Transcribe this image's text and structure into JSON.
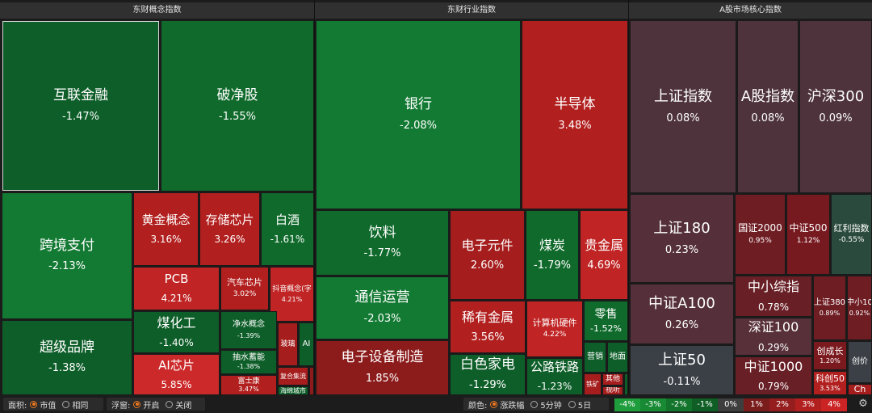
{
  "panels": [
    {
      "title": "东财概念指数"
    },
    {
      "title": "东财行业指数"
    },
    {
      "title": "A股市场核心指数"
    }
  ],
  "concept_cells": [
    {
      "name": "互联金融",
      "value": "-1.47%",
      "color": "#0e5e29"
    },
    {
      "name": "破净股",
      "value": "-1.55%",
      "color": "#0f6a2b"
    },
    {
      "name": "跨境支付",
      "value": "-2.13%",
      "color": "#137a33"
    },
    {
      "name": "超级品牌",
      "value": "-1.38%",
      "color": "#0e5e29"
    },
    {
      "name": "黄金概念",
      "value": "3.16%",
      "color": "#b1201f"
    },
    {
      "name": "存储芯片",
      "value": "3.26%",
      "color": "#b1201f"
    },
    {
      "name": "白酒",
      "value": "-1.61%",
      "color": "#0f6a2b"
    },
    {
      "name": "PCB",
      "value": "4.21%",
      "color": "#c02424"
    },
    {
      "name": "汽车芯片",
      "value": "3.02%",
      "color": "#b1201f"
    },
    {
      "name": "抖音概念(字",
      "value": "4.21%",
      "color": "#c02424"
    },
    {
      "name": "煤化工",
      "value": "-1.40%",
      "color": "#0e5e29"
    },
    {
      "name": "净水概念",
      "value": "-1.39%",
      "color": "#0e5e29"
    },
    {
      "name": "抽水蓄能",
      "value": "-1.38%",
      "color": "#0e5e29"
    },
    {
      "name": "玻璃",
      "value": "",
      "color": "#a51d1d"
    },
    {
      "name": "AI",
      "value": "",
      "color": "#0e5e29"
    },
    {
      "name": "AI芯片",
      "value": "5.85%",
      "color": "#cc2a2a"
    },
    {
      "name": "富士康",
      "value": "3.47%",
      "color": "#b1201f"
    },
    {
      "name": "复合集流",
      "value": "",
      "color": "#a51d1d"
    },
    {
      "name": "海绵城市",
      "value": "",
      "color": "#0e5e29"
    },
    {
      "name": "",
      "value": "",
      "color": "#8e1b1b"
    }
  ],
  "industry_cells": [
    {
      "name": "银行",
      "value": "-2.08%",
      "color": "#137a33"
    },
    {
      "name": "半导体",
      "value": "3.48%",
      "color": "#b1201f"
    },
    {
      "name": "饮料",
      "value": "-1.77%",
      "color": "#0f6a2b"
    },
    {
      "name": "通信运营",
      "value": "-2.03%",
      "color": "#137a33"
    },
    {
      "name": "电子元件",
      "value": "2.60%",
      "color": "#a51d1d"
    },
    {
      "name": "煤炭",
      "value": "-1.79%",
      "color": "#0f6a2b"
    },
    {
      "name": "贵金属",
      "value": "4.69%",
      "color": "#c02424"
    },
    {
      "name": "稀有金属",
      "value": "3.56%",
      "color": "#b1201f"
    },
    {
      "name": "计算机硬件",
      "value": "4.22%",
      "color": "#c02424"
    },
    {
      "name": "零售",
      "value": "-1.52%",
      "color": "#0f6a2b"
    },
    {
      "name": "电子设备制造",
      "value": "1.85%",
      "color": "#8c1c1c"
    },
    {
      "name": "白色家电",
      "value": "-1.29%",
      "color": "#0e5e29"
    },
    {
      "name": "公路铁路",
      "value": "-1.23%",
      "color": "#0e5e29"
    },
    {
      "name": "营销",
      "value": "",
      "color": "#0e5e29"
    },
    {
      "name": "地面",
      "value": "",
      "color": "#0e5e29"
    },
    {
      "name": "铁矿",
      "value": "",
      "color": "#a51d1d"
    },
    {
      "name": "其他",
      "value": "",
      "color": "#a51d1d"
    },
    {
      "name": "视听",
      "value": "",
      "color": "#a51d1d"
    },
    {
      "name": "",
      "value": "",
      "color": "#0e5e29"
    }
  ],
  "index_cells": [
    {
      "name": "上证指数",
      "value": "0.08%",
      "color": "#4e333c"
    },
    {
      "name": "A股指数",
      "value": "0.08%",
      "color": "#4e333c"
    },
    {
      "name": "沪深300",
      "value": "0.09%",
      "color": "#4e333c"
    },
    {
      "name": "上证180",
      "value": "0.23%",
      "color": "#55303a"
    },
    {
      "name": "国证2000",
      "value": "0.95%",
      "color": "#6e1d23"
    },
    {
      "name": "中证500",
      "value": "1.12%",
      "color": "#761a20"
    },
    {
      "name": "红利指数",
      "value": "-0.55%",
      "color": "#2b4a3e"
    },
    {
      "name": "中证A100",
      "value": "0.26%",
      "color": "#55303a"
    },
    {
      "name": "中小综指",
      "value": "0.78%",
      "color": "#682026"
    },
    {
      "name": "上证380",
      "value": "0.89%",
      "color": "#6e1d23"
    },
    {
      "name": "中小10",
      "value": "0.92%",
      "color": "#6e1d23"
    },
    {
      "name": "深证100",
      "value": "0.29%",
      "color": "#573039"
    },
    {
      "name": "上证50",
      "value": "-0.11%",
      "color": "#3a4046"
    },
    {
      "name": "中证1000",
      "value": "0.79%",
      "color": "#682026"
    },
    {
      "name": "创成长",
      "value": "1.20%",
      "color": "#7a1a1f"
    },
    {
      "name": "创价",
      "value": "",
      "color": "#3a4046"
    },
    {
      "name": "科创50",
      "value": "3.53%",
      "color": "#b1201f"
    },
    {
      "name": "Ch",
      "value": "",
      "color": "#a51d1d"
    }
  ],
  "toolbar": {
    "area_label": "面积:",
    "area_options": [
      "市值",
      "相同"
    ],
    "float_label": "浮窗:",
    "float_options": [
      "开启",
      "关闭"
    ],
    "color_label": "颜色:",
    "color_options": [
      "涨跌幅",
      "5分钟",
      "5日"
    ]
  },
  "legend": [
    {
      "label": "-4%",
      "color": "#1f9d3c"
    },
    {
      "label": "-3%",
      "color": "#188a34"
    },
    {
      "label": "-2%",
      "color": "#13742c"
    },
    {
      "label": "-1%",
      "color": "#0f5e25"
    },
    {
      "label": "0%",
      "color": "#3e3e3e"
    },
    {
      "label": "1%",
      "color": "#7a1c1c"
    },
    {
      "label": "2%",
      "color": "#961d1d"
    },
    {
      "label": "3%",
      "color": "#b21f1f"
    },
    {
      "label": "4%",
      "color": "#cc2424"
    }
  ],
  "settings_icon": "gear-icon"
}
